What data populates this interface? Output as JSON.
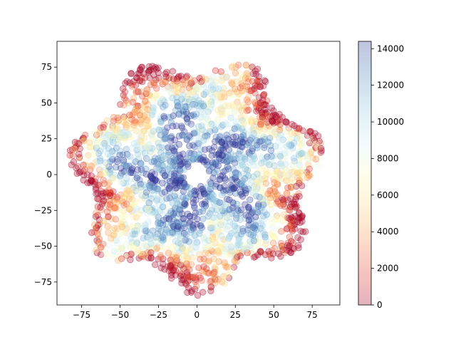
{
  "chart_data": {
    "type": "scatter",
    "title": "",
    "xlabel": "",
    "ylabel": "",
    "xlim": [
      -91,
      93
    ],
    "ylim": [
      -91,
      93
    ],
    "x_ticks": [
      -75,
      -50,
      -25,
      0,
      25,
      50,
      75
    ],
    "y_ticks": [
      -75,
      -50,
      -25,
      0,
      25,
      50,
      75
    ],
    "grid": false,
    "marker": "circle",
    "alpha": 0.3,
    "colormap": "RdYlBu",
    "colormap_stops": [
      "#a50026",
      "#d73027",
      "#f46d43",
      "#fdae61",
      "#fee090",
      "#ffffbf",
      "#e0f3f8",
      "#abd9e9",
      "#74add1",
      "#4575b4",
      "#313695"
    ],
    "colorbar": {
      "range": [
        0,
        14400
      ],
      "ticks": [
        0,
        2000,
        4000,
        6000,
        8000,
        10000,
        12000,
        14000
      ],
      "placement": "right"
    },
    "cloud": {
      "shape": "heptagonal disc",
      "center": [
        0,
        0
      ],
      "outer_radius": 84,
      "inner_hole_radius": 9,
      "color_pattern": "low values (red/orange) at the scalloped outer rim, high values (blue) toward the center and along radial bands",
      "point_count_approx": 2500
    }
  }
}
